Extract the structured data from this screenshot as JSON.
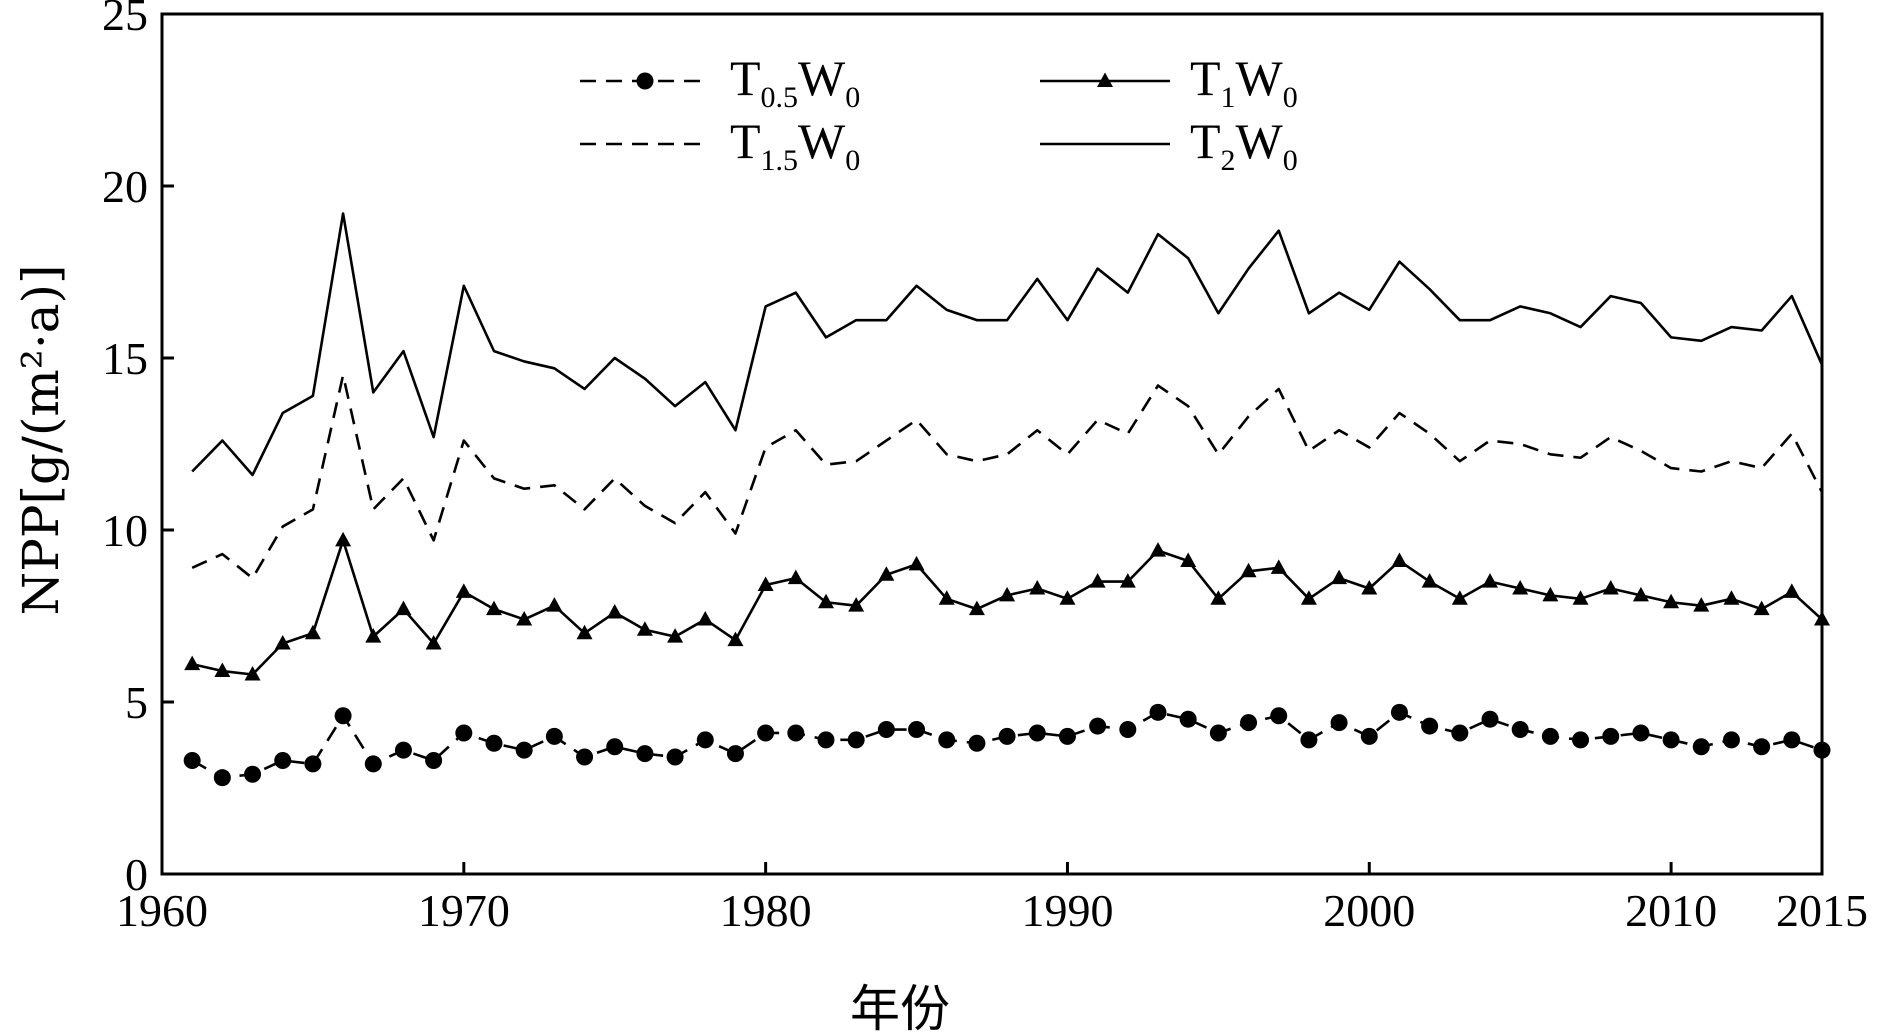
{
  "chart_data": {
    "type": "line",
    "xlabel": "年份",
    "ylabel": "NPP[g/(m²·a)]",
    "xlim": [
      1960,
      2015
    ],
    "ylim": [
      0,
      25
    ],
    "xticks": [
      1960,
      1970,
      1980,
      1990,
      2000,
      2010,
      2015
    ],
    "yticks": [
      0,
      5,
      10,
      15,
      20,
      25
    ],
    "grid": false,
    "legend": "top-center",
    "x": [
      1961,
      1962,
      1963,
      1964,
      1965,
      1966,
      1967,
      1968,
      1969,
      1970,
      1971,
      1972,
      1973,
      1974,
      1975,
      1976,
      1977,
      1978,
      1979,
      1980,
      1981,
      1982,
      1983,
      1984,
      1985,
      1986,
      1987,
      1988,
      1989,
      1990,
      1991,
      1992,
      1993,
      1994,
      1995,
      1996,
      1997,
      1998,
      1999,
      2000,
      2001,
      2002,
      2003,
      2004,
      2005,
      2006,
      2007,
      2008,
      2009,
      2010,
      2011,
      2012,
      2013,
      2014,
      2015
    ],
    "series": [
      {
        "name": "T0.5W0",
        "legend_main": "T",
        "legend_sub1": "0.5",
        "legend_mid": "W",
        "legend_sub2": "0",
        "style": "dashed",
        "marker": "circle",
        "color": "#000000",
        "values": [
          3.3,
          2.8,
          2.9,
          3.3,
          3.2,
          4.6,
          3.2,
          3.6,
          3.3,
          4.1,
          3.8,
          3.6,
          4.0,
          3.4,
          3.7,
          3.5,
          3.4,
          3.9,
          3.5,
          4.1,
          4.1,
          3.9,
          3.9,
          4.2,
          4.2,
          3.9,
          3.8,
          4.0,
          4.1,
          4.0,
          4.3,
          4.2,
          4.7,
          4.5,
          4.1,
          4.4,
          4.6,
          3.9,
          4.4,
          4.0,
          4.7,
          4.3,
          4.1,
          4.5,
          4.2,
          4.0,
          3.9,
          4.0,
          4.1,
          3.9,
          3.7,
          3.9,
          3.7,
          3.9,
          3.6
        ]
      },
      {
        "name": "T1W0",
        "legend_main": "T",
        "legend_sub1": "1",
        "legend_mid": "W",
        "legend_sub2": "0",
        "style": "solid",
        "marker": "triangle",
        "color": "#000000",
        "values": [
          6.1,
          5.9,
          5.8,
          6.7,
          7.0,
          9.7,
          6.9,
          7.7,
          6.7,
          8.2,
          7.7,
          7.4,
          7.8,
          7.0,
          7.6,
          7.1,
          6.9,
          7.4,
          6.8,
          8.4,
          8.6,
          7.9,
          7.8,
          8.7,
          9.0,
          8.0,
          7.7,
          8.1,
          8.3,
          8.0,
          8.5,
          8.5,
          9.4,
          9.1,
          8.0,
          8.8,
          8.9,
          8.0,
          8.6,
          8.3,
          9.1,
          8.5,
          8.0,
          8.5,
          8.3,
          8.1,
          8.0,
          8.3,
          8.1,
          7.9,
          7.8,
          8.0,
          7.7,
          8.2,
          7.4
        ]
      },
      {
        "name": "T1.5W0",
        "legend_main": "T",
        "legend_sub1": "1.5",
        "legend_mid": "W",
        "legend_sub2": "0",
        "style": "dashed",
        "marker": "none",
        "color": "#000000",
        "values": [
          8.9,
          9.3,
          8.6,
          10.1,
          10.6,
          14.5,
          10.6,
          11.5,
          9.7,
          12.6,
          11.5,
          11.2,
          11.3,
          10.6,
          11.5,
          10.7,
          10.2,
          11.1,
          9.9,
          12.4,
          12.9,
          11.9,
          12.0,
          12.6,
          13.2,
          12.2,
          12.0,
          12.2,
          12.9,
          12.2,
          13.2,
          12.8,
          14.2,
          13.6,
          12.2,
          13.3,
          14.1,
          12.3,
          12.9,
          12.4,
          13.4,
          12.8,
          12.0,
          12.6,
          12.5,
          12.2,
          12.1,
          12.7,
          12.3,
          11.8,
          11.7,
          12.0,
          11.8,
          12.8,
          11.1
        ]
      },
      {
        "name": "T2W0",
        "legend_main": "T",
        "legend_sub1": "2",
        "legend_mid": "W",
        "legend_sub2": "0",
        "style": "solid",
        "marker": "none",
        "color": "#000000",
        "values": [
          11.7,
          12.6,
          11.6,
          13.4,
          13.9,
          19.2,
          14.0,
          15.2,
          12.7,
          17.1,
          15.2,
          14.9,
          14.7,
          14.1,
          15.0,
          14.4,
          13.6,
          14.3,
          12.9,
          16.5,
          16.9,
          15.6,
          16.1,
          16.1,
          17.1,
          16.4,
          16.1,
          16.1,
          17.3,
          16.1,
          17.6,
          16.9,
          18.6,
          17.9,
          16.3,
          17.6,
          18.7,
          16.3,
          16.9,
          16.4,
          17.8,
          17.0,
          16.1,
          16.1,
          16.5,
          16.3,
          15.9,
          16.8,
          16.6,
          15.6,
          15.5,
          15.9,
          15.8,
          16.8,
          14.8
        ]
      }
    ]
  }
}
